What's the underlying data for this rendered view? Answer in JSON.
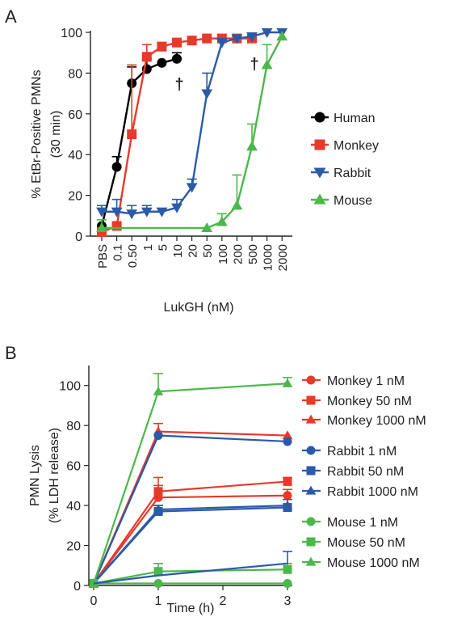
{
  "chart_data": [
    {
      "panel": "A",
      "type": "line",
      "ylabel": "% EtBr-Positive PMNs",
      "ylabel2": "(30 min)",
      "xlabel": "LukGH (nM)",
      "x_scale": "categorical",
      "categories": [
        "PBS",
        "0.1",
        "0.50",
        "1",
        "5",
        "10",
        "20",
        "50",
        "100",
        "200",
        "500",
        "1000",
        "2000"
      ],
      "yticks": [
        "0",
        "20",
        "40",
        "60",
        "80",
        "100"
      ],
      "ylim": [
        0,
        100
      ],
      "legend_position": "right",
      "dagger_label": "†",
      "daggers": [
        {
          "series": "Human",
          "category_index": 5,
          "y": 75
        },
        {
          "series": "Monkey",
          "category_index": 10,
          "y": 85
        }
      ],
      "series": [
        {
          "name": "Human",
          "color": "#000000",
          "marker": "circle",
          "values": [
            [
              0,
              5
            ],
            [
              1,
              34
            ],
            [
              2,
              75
            ],
            [
              3,
              82
            ],
            [
              4,
              85
            ],
            [
              5,
              87
            ]
          ],
          "errors": [
            [
              1,
              5
            ],
            [
              2,
              8
            ],
            [
              3,
              5
            ],
            [
              5,
              3
            ]
          ]
        },
        {
          "name": "Monkey",
          "color": "#e8392a",
          "marker": "square",
          "values": [
            [
              0,
              2
            ],
            [
              1,
              5
            ],
            [
              2,
              50
            ],
            [
              3,
              88
            ],
            [
              4,
              93
            ],
            [
              5,
              95
            ],
            [
              6,
              96
            ],
            [
              7,
              97
            ],
            [
              8,
              97
            ],
            [
              9,
              97
            ],
            [
              10,
              97
            ]
          ],
          "errors": [
            [
              2,
              34
            ],
            [
              3,
              6
            ],
            [
              4,
              2
            ]
          ]
        },
        {
          "name": "Rabbit",
          "color": "#2b5aa8",
          "marker": "triangle-down",
          "values": [
            [
              0,
              12
            ],
            [
              1,
              12
            ],
            [
              2,
              11
            ],
            [
              3,
              12
            ],
            [
              4,
              12
            ],
            [
              5,
              14
            ],
            [
              6,
              24
            ],
            [
              7,
              70
            ],
            [
              8,
              95
            ],
            [
              9,
              97
            ],
            [
              10,
              98
            ],
            [
              11,
              100
            ],
            [
              12,
              100
            ]
          ],
          "errors": [
            [
              0,
              3
            ],
            [
              1,
              6
            ],
            [
              2,
              4
            ],
            [
              3,
              3
            ],
            [
              5,
              4
            ],
            [
              6,
              4
            ],
            [
              7,
              10
            ],
            [
              8,
              2
            ]
          ]
        },
        {
          "name": "Mouse",
          "color": "#4bb84a",
          "marker": "triangle-up",
          "values": [
            [
              0,
              4
            ],
            [
              7,
              4
            ],
            [
              8,
              7
            ],
            [
              9,
              15
            ],
            [
              10,
              44
            ],
            [
              11,
              84
            ],
            [
              12,
              98
            ]
          ],
          "errors": [
            [
              0,
              4
            ],
            [
              8,
              4
            ],
            [
              9,
              15
            ],
            [
              10,
              11
            ],
            [
              11,
              10
            ]
          ]
        }
      ]
    },
    {
      "panel": "B",
      "type": "line",
      "ylabel": "PMN Lysis",
      "ylabel2": "(% LDH release)",
      "xlabel": "Time (h)",
      "x": [
        0,
        1,
        3
      ],
      "xticks": [
        "0",
        "1",
        "2",
        "3"
      ],
      "xlim": [
        0,
        3
      ],
      "yticks": [
        "0",
        "20",
        "40",
        "60",
        "80",
        "100"
      ],
      "ylim": [
        0,
        110
      ],
      "legend_position": "right",
      "series": [
        {
          "name": "Monkey 1 nM",
          "color": "#e8392a",
          "marker": "circle",
          "values": [
            1,
            44,
            45
          ],
          "errors": [
            0,
            6,
            3
          ]
        },
        {
          "name": "Monkey 50 nM",
          "color": "#e8392a",
          "marker": "square",
          "values": [
            1,
            47,
            52
          ],
          "errors": [
            0,
            7,
            2
          ]
        },
        {
          "name": "Monkey 1000 nM",
          "color": "#e8392a",
          "marker": "triangle-up",
          "values": [
            1,
            77,
            75
          ],
          "errors": [
            0,
            4,
            0
          ]
        },
        {
          "name": "Rabbit 1 nM",
          "color": "#2b5aa8",
          "marker": "circle",
          "values": [
            1,
            75,
            72
          ],
          "errors": [
            0,
            0,
            0
          ]
        },
        {
          "name": "Rabbit 50 nM",
          "color": "#2b5aa8",
          "marker": "square",
          "values": [
            1,
            37,
            39
          ],
          "errors": [
            0,
            3,
            4
          ]
        },
        {
          "name": "Rabbit 1000 nM",
          "color": "#2b5aa8",
          "marker": "triangle-up",
          "values": [
            1,
            38,
            40
          ],
          "errors": [
            0,
            2,
            0
          ]
        },
        {
          "name": "Mouse 1 nM",
          "color": "#4bb84a",
          "marker": "circle",
          "values": [
            1,
            1,
            1
          ],
          "errors": [
            0,
            0,
            0
          ]
        },
        {
          "name": "Mouse 50 nM",
          "color": "#4bb84a",
          "marker": "square",
          "values": [
            1,
            7,
            8
          ],
          "errors": [
            0,
            4,
            3
          ]
        },
        {
          "name": "Mouse 1000 nM",
          "color": "#4bb84a",
          "marker": "triangle-up",
          "values": [
            1,
            97,
            101
          ],
          "errors": [
            0,
            9,
            3
          ]
        },
        {
          "name": "",
          "color": "#2b5aa8",
          "marker": "none",
          "values": [
            1,
            5,
            11
          ],
          "errors": [
            0,
            0,
            6
          ]
        }
      ]
    }
  ]
}
